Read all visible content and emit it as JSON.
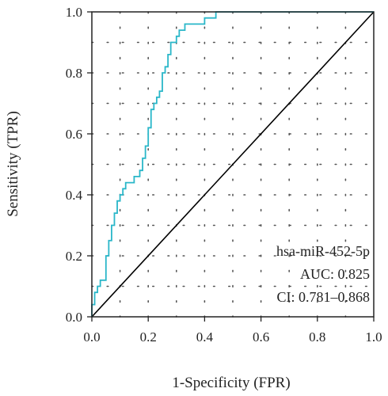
{
  "chart_data": {
    "type": "line",
    "xlabel": "1-Specificity (FPR)",
    "ylabel": "Sensitivity (TPR)",
    "xlim": [
      0,
      1
    ],
    "ylim": [
      0,
      1
    ],
    "x_ticks": [
      "0.0",
      "0.2",
      "0.4",
      "0.6",
      "0.8",
      "1.0"
    ],
    "y_ticks": [
      "0.0",
      "0.2",
      "0.4",
      "0.6",
      "0.8",
      "1.0"
    ],
    "grid": "dotted",
    "colors": {
      "roc": "#2ab7c9",
      "reference": "#000000"
    },
    "series": [
      {
        "role": "roc-curve",
        "x": [
          0.0,
          0.0,
          0.01,
          0.01,
          0.02,
          0.02,
          0.03,
          0.03,
          0.05,
          0.05,
          0.06,
          0.06,
          0.07,
          0.07,
          0.08,
          0.08,
          0.09,
          0.09,
          0.1,
          0.1,
          0.11,
          0.11,
          0.12,
          0.12,
          0.15,
          0.15,
          0.17,
          0.17,
          0.18,
          0.18,
          0.19,
          0.19,
          0.2,
          0.2,
          0.21,
          0.21,
          0.22,
          0.22,
          0.23,
          0.23,
          0.24,
          0.24,
          0.25,
          0.25,
          0.26,
          0.26,
          0.27,
          0.27,
          0.28,
          0.28,
          0.3,
          0.3,
          0.31,
          0.31,
          0.33,
          0.33,
          0.35,
          0.35,
          0.4,
          0.4,
          0.41,
          0.41,
          0.44,
          0.44,
          0.48,
          0.48,
          1.0
        ],
        "y": [
          0.0,
          0.04,
          0.04,
          0.08,
          0.08,
          0.1,
          0.1,
          0.12,
          0.12,
          0.2,
          0.2,
          0.25,
          0.25,
          0.3,
          0.3,
          0.34,
          0.34,
          0.38,
          0.38,
          0.4,
          0.4,
          0.42,
          0.42,
          0.44,
          0.44,
          0.46,
          0.46,
          0.48,
          0.48,
          0.52,
          0.52,
          0.56,
          0.56,
          0.62,
          0.62,
          0.68,
          0.68,
          0.7,
          0.7,
          0.72,
          0.72,
          0.74,
          0.74,
          0.8,
          0.8,
          0.82,
          0.82,
          0.86,
          0.86,
          0.9,
          0.9,
          0.92,
          0.92,
          0.94,
          0.94,
          0.96,
          0.96,
          0.96,
          0.96,
          0.98,
          0.98,
          0.98,
          0.98,
          1.0,
          1.0,
          1.0,
          1.0
        ]
      },
      {
        "role": "reference-diagonal",
        "x": [
          0,
          1
        ],
        "y": [
          0,
          1
        ]
      }
    ],
    "annotations": [
      "hsa-miR-452-5p",
      "AUC: 0.825",
      "CI: 0.781–0.868"
    ]
  }
}
